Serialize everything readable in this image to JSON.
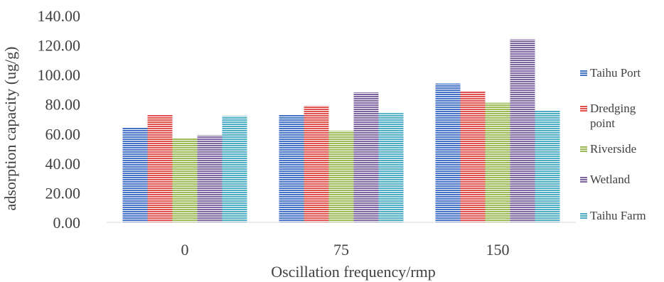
{
  "chart_data": {
    "type": "bar",
    "title": "",
    "xlabel": "Oscillation frequency/rmp",
    "ylabel": "adsorption capacity (ug/g)",
    "categories": [
      "0",
      "75",
      "150"
    ],
    "ylim": [
      0,
      140
    ],
    "yticks": [
      "0.00",
      "20.00",
      "40.00",
      "60.00",
      "80.00",
      "100.00",
      "120.00",
      "140.00"
    ],
    "grid": false,
    "legend_position": "right",
    "series": [
      {
        "name": "Taihu Port",
        "color": "#4472c4",
        "values": [
          64,
          73,
          94
        ]
      },
      {
        "name": "Dredging point",
        "color": "#e0504d",
        "values": [
          73,
          79,
          89
        ]
      },
      {
        "name": "Riverside",
        "color": "#9bbb59",
        "values": [
          57,
          62,
          81
        ]
      },
      {
        "name": "Wetland",
        "color": "#8064a2",
        "values": [
          59,
          88,
          124
        ]
      },
      {
        "name": "Taihu Farm",
        "color": "#4bacc6",
        "values": [
          72,
          74,
          76
        ]
      }
    ]
  }
}
